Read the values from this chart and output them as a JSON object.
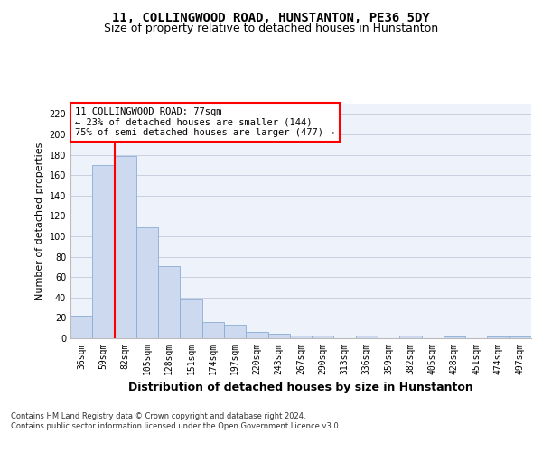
{
  "title": "11, COLLINGWOOD ROAD, HUNSTANTON, PE36 5DY",
  "subtitle": "Size of property relative to detached houses in Hunstanton",
  "xlabel": "Distribution of detached houses by size in Hunstanton",
  "ylabel": "Number of detached properties",
  "bar_labels": [
    "36sqm",
    "59sqm",
    "82sqm",
    "105sqm",
    "128sqm",
    "151sqm",
    "174sqm",
    "197sqm",
    "220sqm",
    "243sqm",
    "267sqm",
    "290sqm",
    "313sqm",
    "336sqm",
    "359sqm",
    "382sqm",
    "405sqm",
    "428sqm",
    "451sqm",
    "474sqm",
    "497sqm"
  ],
  "bar_values": [
    22,
    170,
    179,
    109,
    71,
    38,
    16,
    13,
    6,
    4,
    3,
    3,
    0,
    3,
    0,
    3,
    0,
    2,
    0,
    2,
    2
  ],
  "bar_color": "#ccd9ee",
  "bar_edge_color": "#8aadd4",
  "vline_x": 1.5,
  "vline_color": "red",
  "annotation_text": "11 COLLINGWOOD ROAD: 77sqm\n← 23% of detached houses are smaller (144)\n75% of semi-detached houses are larger (477) →",
  "annotation_box_color": "white",
  "annotation_box_edge": "red",
  "ylim": [
    0,
    230
  ],
  "yticks": [
    0,
    20,
    40,
    60,
    80,
    100,
    120,
    140,
    160,
    180,
    200,
    220
  ],
  "footer": "Contains HM Land Registry data © Crown copyright and database right 2024.\nContains public sector information licensed under the Open Government Licence v3.0.",
  "bg_color": "#eef2fa",
  "grid_color": "#c8d0e0",
  "title_fontsize": 10,
  "subtitle_fontsize": 9,
  "xlabel_fontsize": 9,
  "ylabel_fontsize": 8,
  "tick_fontsize": 7,
  "annotation_fontsize": 7.5,
  "footer_fontsize": 6
}
